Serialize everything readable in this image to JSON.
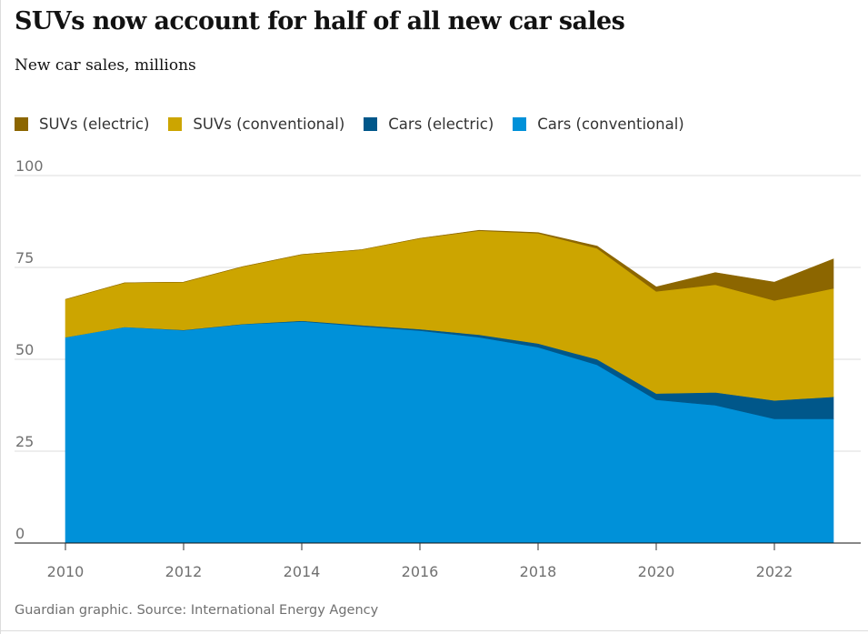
{
  "chart_data": {
    "type": "area",
    "stacked": true,
    "title": "SUVs now account for half of all new car sales",
    "subtitle": "New car sales, millions",
    "source": "Guardian graphic. Source: International Energy Agency",
    "xlabel": "",
    "ylabel": "",
    "ylim": [
      0,
      100
    ],
    "y_ticks": [
      "100",
      "75",
      "50",
      "25",
      "0"
    ],
    "x_ticks": [
      "2010",
      "2012",
      "2014",
      "2016",
      "2018",
      "2020",
      "2022"
    ],
    "x": [
      2010,
      2011,
      2012,
      2013,
      2014,
      2015,
      2016,
      2017,
      2018,
      2019,
      2020,
      2021,
      2022,
      2023
    ],
    "legend_position": "top-left",
    "series": [
      {
        "name": "Cars (conventional)",
        "color": "#0091d9",
        "values": [
          56.0,
          58.8,
          57.9,
          59.5,
          60.3,
          59.0,
          57.8,
          56.0,
          53.3,
          48.5,
          39.0,
          37.5,
          33.8,
          33.8
        ]
      },
      {
        "name": "Cars (electric)",
        "color": "#00578a",
        "values": [
          0.0,
          0.0,
          0.1,
          0.1,
          0.2,
          0.3,
          0.4,
          0.7,
          1.0,
          1.5,
          1.7,
          3.5,
          5.0,
          6.0
        ]
      },
      {
        "name": "SUVs (conventional)",
        "color": "#cca500",
        "values": [
          10.3,
          12.0,
          13.0,
          15.6,
          18.0,
          20.5,
          24.7,
          28.3,
          30.0,
          30.2,
          27.8,
          29.3,
          27.2,
          29.5
        ]
      },
      {
        "name": "SUVs (electric)",
        "color": "#8c6600",
        "values": [
          0.0,
          0.0,
          0.0,
          0.0,
          0.0,
          0.0,
          0.0,
          0.1,
          0.2,
          0.6,
          1.2,
          3.3,
          5.0,
          8.0
        ]
      }
    ]
  },
  "legend": [
    {
      "label": "SUVs (electric)",
      "color": "#8c6600"
    },
    {
      "label": "SUVs (conventional)",
      "color": "#cca500"
    },
    {
      "label": "Cars (electric)",
      "color": "#00578a"
    },
    {
      "label": "Cars (conventional)",
      "color": "#0091d9"
    }
  ]
}
